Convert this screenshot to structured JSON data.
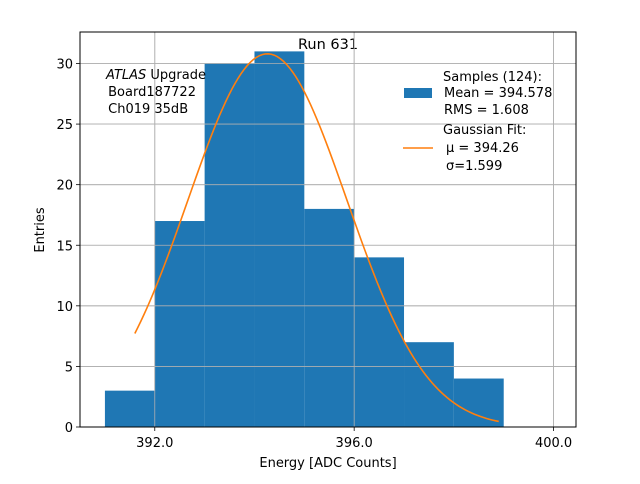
{
  "chart_data": {
    "type": "bar",
    "title": "Run 631",
    "xlabel": "Energy [ADC Counts]",
    "ylabel": "Entries",
    "xlim": [
      390.5,
      400.45
    ],
    "ylim": [
      0,
      32.6
    ],
    "xticks": [
      392.0,
      396.0,
      400.0
    ],
    "xtick_labels": [
      "392.0",
      "396.0",
      "400.0"
    ],
    "yticks": [
      0,
      5,
      10,
      15,
      20,
      25,
      30
    ],
    "ytick_labels": [
      "0",
      "5",
      "10",
      "15",
      "20",
      "25",
      "30"
    ],
    "grid": true,
    "histogram": {
      "bin_edges": [
        391,
        392,
        393,
        394,
        395,
        396,
        397,
        398,
        399
      ],
      "counts": [
        3,
        17,
        30,
        31,
        18,
        14,
        7,
        4
      ],
      "color": "#1f77b4"
    },
    "fit": {
      "type": "gaussian",
      "mu": 394.26,
      "sigma": 1.599,
      "amplitude": 30.8,
      "x_range": [
        391.6,
        398.9
      ],
      "color": "#ff7f0e"
    },
    "annotation": {
      "italic": "ATLAS",
      "line1_rest": " Upgrade",
      "line2": " Board187722",
      "line3": " Ch019 35dB",
      "placement": "top-left"
    },
    "legend": {
      "placement": "top-right",
      "entries": [
        {
          "kind": "patch",
          "color": "#1f77b4",
          "lines": [
            "Samples (124):",
            " Mean = 394.578",
            " RMS = 1.608"
          ]
        },
        {
          "kind": "line",
          "color": "#ff7f0e",
          "lines": [
            "Gaussian Fit:",
            " μ = 394.26",
            " σ=1.599"
          ]
        }
      ]
    }
  }
}
